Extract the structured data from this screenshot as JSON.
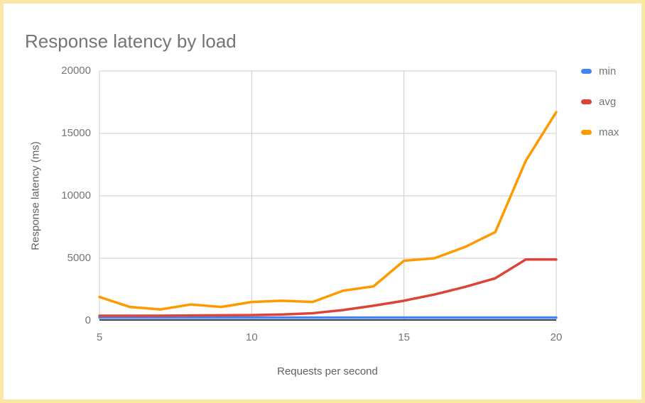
{
  "window": {
    "background": "#FFFFFF",
    "border_color": "#FBE7A6"
  },
  "chart_data": {
    "type": "line",
    "title": "Response latency by load",
    "xlabel": "Requests per second",
    "ylabel": "Response latency (ms)",
    "x": [
      5,
      6,
      7,
      8,
      9,
      10,
      11,
      12,
      13,
      14,
      15,
      16,
      17,
      18,
      19,
      20
    ],
    "series": [
      {
        "name": "min",
        "color": "#4285F4",
        "values": [
          250,
          250,
          250,
          250,
          250,
          250,
          250,
          250,
          250,
          250,
          250,
          250,
          250,
          250,
          250,
          250
        ]
      },
      {
        "name": "avg",
        "color": "#DB4437",
        "values": [
          400,
          400,
          400,
          420,
          430,
          450,
          500,
          600,
          850,
          1200,
          1600,
          2100,
          2700,
          3400,
          4900,
          4900
        ]
      },
      {
        "name": "max",
        "color": "#FF9900",
        "values": [
          1900,
          1100,
          900,
          1300,
          1100,
          1500,
          1600,
          1500,
          2400,
          2750,
          4800,
          5000,
          5900,
          7100,
          12800,
          16700
        ]
      }
    ],
    "x_ticks": [
      5,
      10,
      15,
      20
    ],
    "y_ticks": [
      0,
      5000,
      10000,
      15000,
      20000
    ],
    "xlim": [
      5,
      20
    ],
    "ylim": [
      0,
      20000
    ],
    "grid": true,
    "legend_position": "right",
    "colors": {
      "grid": "#CCCCCC",
      "axis": "#424242",
      "title_text": "#757575",
      "tick_text": "#757575",
      "axis_title_text": "#616161"
    }
  }
}
